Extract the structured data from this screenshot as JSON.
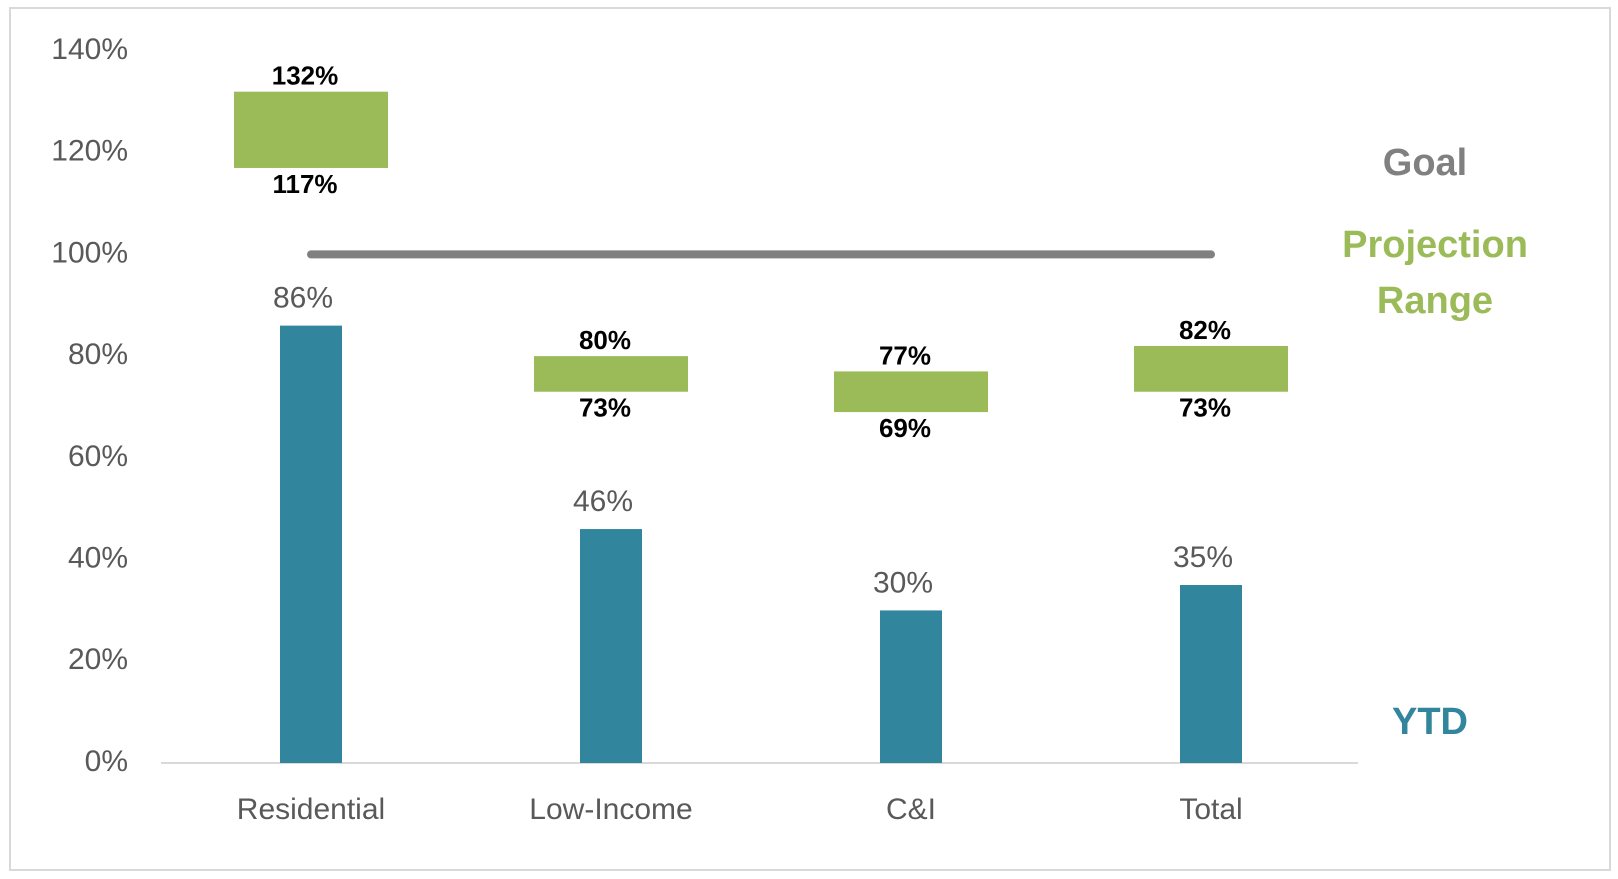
{
  "chart_data": {
    "type": "bar",
    "categories": [
      "Residential",
      "Low-Income",
      "C&I",
      "Total"
    ],
    "ylim": [
      0,
      140
    ],
    "yticks": [
      {
        "value": 0,
        "label": "0%"
      },
      {
        "value": 20,
        "label": "20%"
      },
      {
        "value": 40,
        "label": "40%"
      },
      {
        "value": 60,
        "label": "60%"
      },
      {
        "value": 80,
        "label": "80%"
      },
      {
        "value": 100,
        "label": "100%"
      },
      {
        "value": 120,
        "label": "120%"
      },
      {
        "value": 140,
        "label": "140%"
      }
    ],
    "series": [
      {
        "name": "Goal",
        "type": "line",
        "color": "#808080",
        "values": [
          100,
          100,
          100,
          100
        ]
      },
      {
        "name": "Projection Range",
        "type": "range",
        "color": "#9bbb59",
        "low": [
          117,
          73,
          69,
          73
        ],
        "high": [
          132,
          80,
          77,
          82
        ],
        "low_labels": [
          "117%",
          "73%",
          "69%",
          "73%"
        ],
        "high_labels": [
          "132%",
          "80%",
          "77%",
          "82%"
        ]
      },
      {
        "name": "YTD",
        "type": "bar",
        "color": "#31859c",
        "values": [
          86,
          46,
          30,
          35
        ],
        "value_labels": [
          "86%",
          "46%",
          "30%",
          "35%"
        ]
      }
    ]
  }
}
